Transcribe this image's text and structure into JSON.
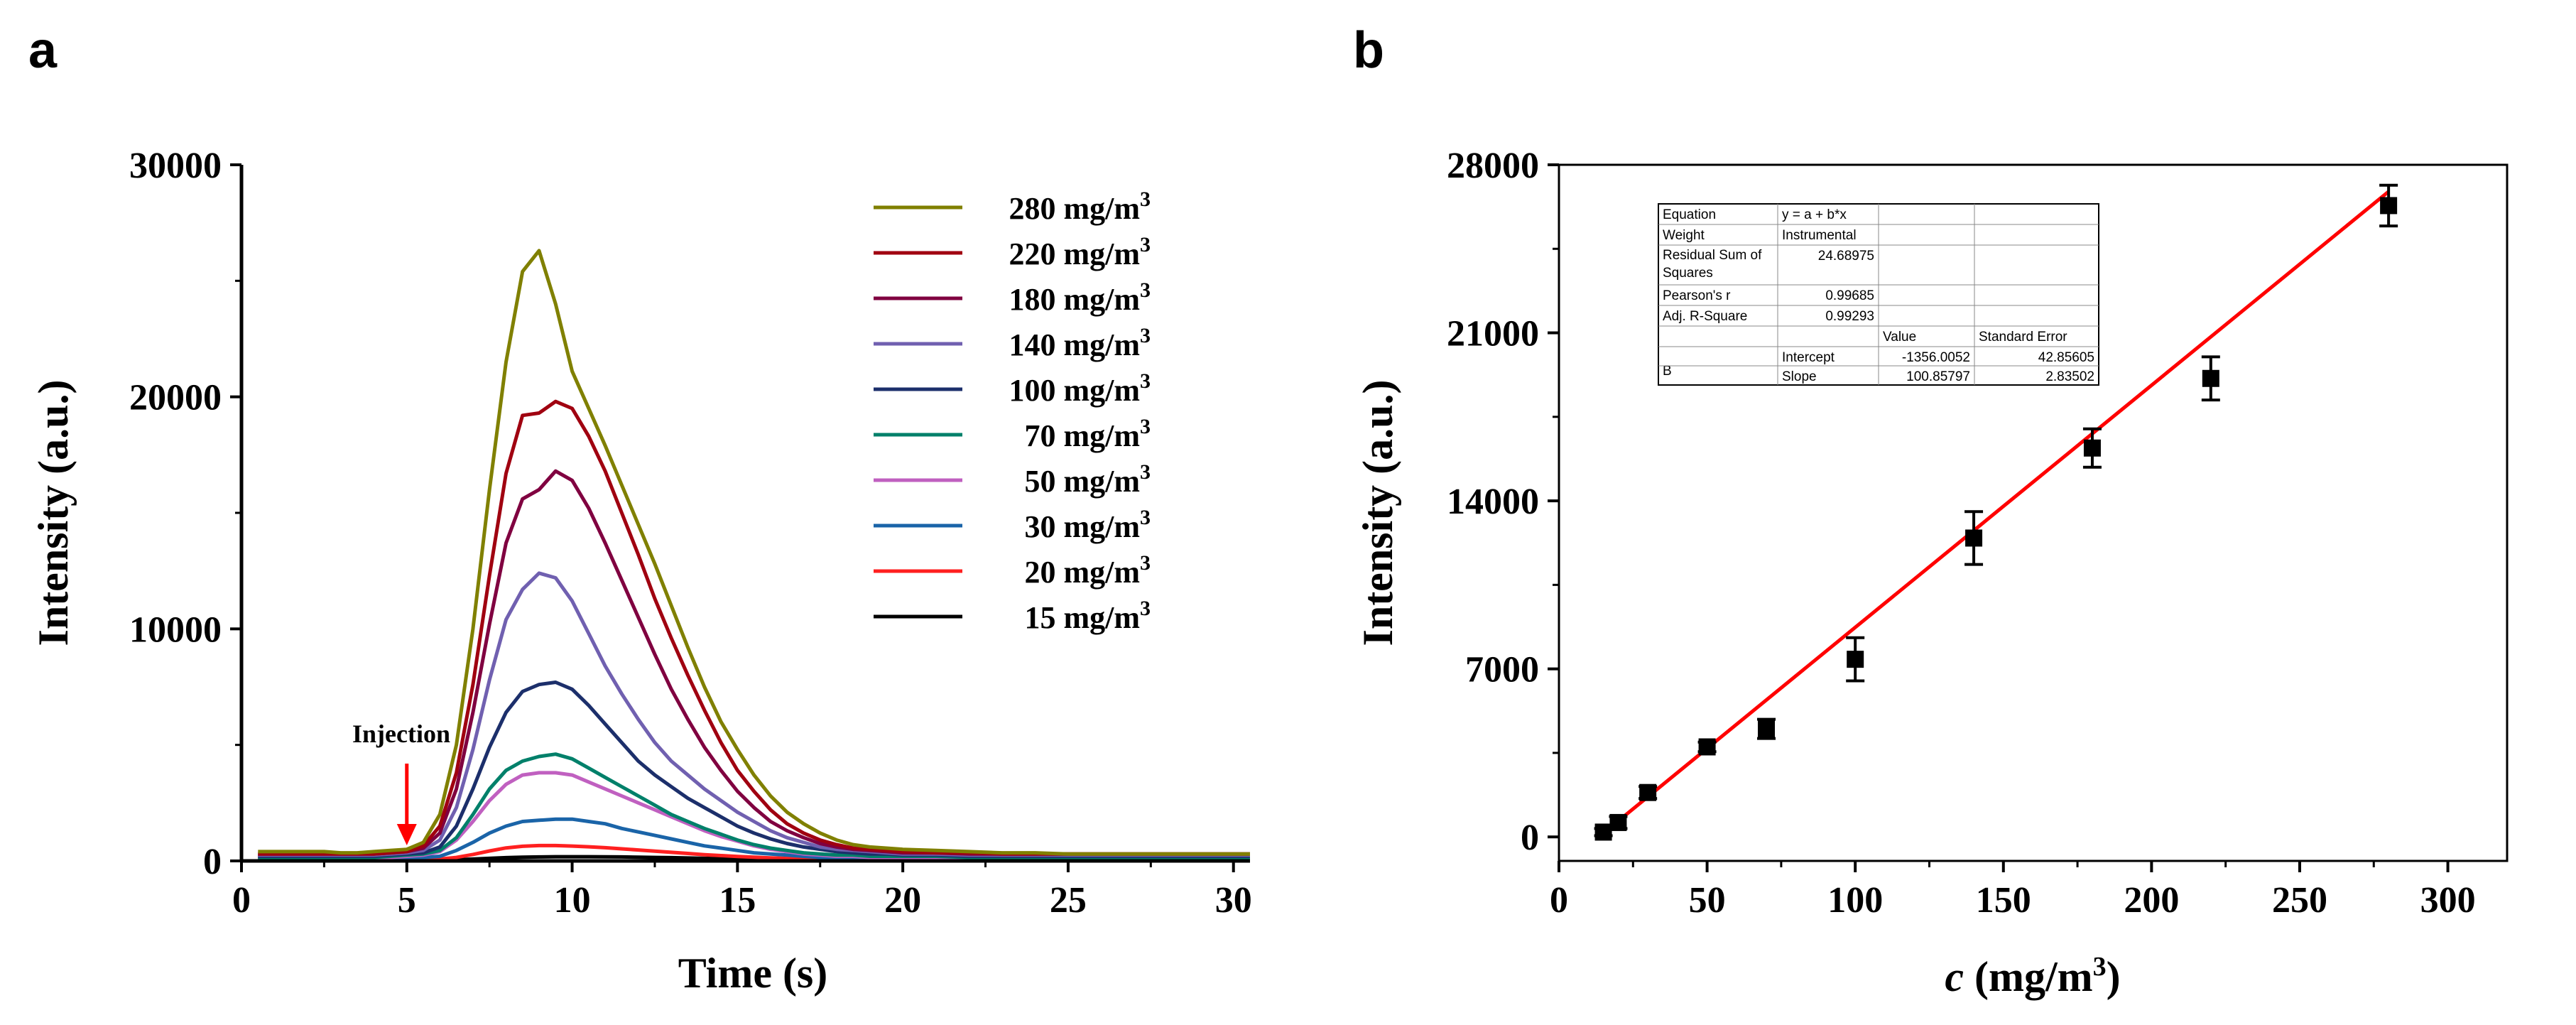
{
  "panel_labels": {
    "a": "a",
    "b": "b"
  },
  "chart_data": [
    {
      "type": "line",
      "panel": "a",
      "title": "",
      "xlabel": "Time (s)",
      "ylabel": "Intensity (a.u.)",
      "xlim": [
        0,
        30.5
      ],
      "ylim": [
        0,
        30000
      ],
      "xticks": [
        0,
        5,
        10,
        15,
        20,
        25,
        30
      ],
      "yticks": [
        0,
        10000,
        20000,
        30000
      ],
      "legend_position": "top-right",
      "annotation": {
        "text": "Injection",
        "x": 5,
        "arrow_color": "#ff0000"
      },
      "x": [
        0.5,
        1,
        1.5,
        2,
        2.5,
        3,
        3.5,
        4,
        4.5,
        5,
        5.5,
        6,
        6.5,
        7,
        7.5,
        8,
        8.5,
        9,
        9.5,
        10,
        10.5,
        11,
        11.5,
        12,
        12.5,
        13,
        13.5,
        14,
        14.5,
        15,
        15.5,
        16,
        16.5,
        17,
        17.5,
        18,
        18.5,
        19,
        19.5,
        20,
        21,
        22,
        23,
        24,
        25,
        26,
        27,
        28,
        29,
        30,
        30.5
      ],
      "series": [
        {
          "name": "280 mg/m",
          "sup": "3",
          "color": "#808000",
          "values": [
            400,
            400,
            400,
            400,
            400,
            350,
            350,
            400,
            450,
            500,
            800,
            2000,
            5000,
            10000,
            16000,
            21500,
            25400,
            26300,
            24000,
            21100,
            19500,
            17900,
            16200,
            14500,
            12800,
            11000,
            9200,
            7500,
            6000,
            4800,
            3700,
            2800,
            2100,
            1600,
            1200,
            900,
            700,
            600,
            550,
            500,
            450,
            400,
            350,
            350,
            300,
            300,
            300,
            300,
            300,
            300,
            300
          ]
        },
        {
          "name": "220 mg/m",
          "sup": "3",
          "color": "#a00010",
          "values": [
            300,
            300,
            300,
            300,
            300,
            300,
            300,
            300,
            350,
            400,
            650,
            1500,
            3800,
            7600,
            12300,
            16700,
            19200,
            19300,
            19800,
            19500,
            18300,
            16800,
            15000,
            13200,
            11300,
            9600,
            8000,
            6500,
            5100,
            3900,
            3000,
            2200,
            1600,
            1200,
            900,
            700,
            550,
            500,
            450,
            400,
            350,
            350,
            300,
            300,
            300,
            300,
            300,
            300,
            300,
            300,
            300
          ]
        },
        {
          "name": "180 mg/m",
          "sup": "3",
          "color": "#800040",
          "values": [
            300,
            300,
            300,
            300,
            300,
            300,
            300,
            300,
            350,
            400,
            550,
            1200,
            3100,
            6400,
            10200,
            13700,
            15600,
            16000,
            16800,
            16400,
            15200,
            13700,
            12100,
            10500,
            8900,
            7400,
            6100,
            4900,
            3900,
            3000,
            2300,
            1700,
            1300,
            1000,
            750,
            600,
            500,
            450,
            400,
            350,
            350,
            300,
            300,
            300,
            300,
            300,
            300,
            300,
            300,
            300,
            300
          ]
        },
        {
          "name": "140 mg/m",
          "sup": "3",
          "color": "#7060b0",
          "values": [
            250,
            250,
            250,
            250,
            250,
            250,
            250,
            250,
            300,
            350,
            450,
            900,
            2300,
            4800,
            7800,
            10400,
            11700,
            12400,
            12200,
            11200,
            9800,
            8400,
            7200,
            6100,
            5100,
            4300,
            3700,
            3100,
            2600,
            2100,
            1700,
            1300,
            1000,
            800,
            600,
            500,
            450,
            400,
            350,
            300,
            300,
            250,
            250,
            250,
            250,
            250,
            250,
            250,
            250,
            250,
            250
          ]
        },
        {
          "name": "100 mg/m",
          "sup": "3",
          "color": "#1c2f6b",
          "values": [
            200,
            200,
            200,
            200,
            200,
            200,
            200,
            200,
            250,
            300,
            350,
            600,
            1500,
            3100,
            4900,
            6400,
            7300,
            7600,
            7700,
            7400,
            6700,
            5900,
            5100,
            4300,
            3700,
            3200,
            2700,
            2300,
            1900,
            1500,
            1200,
            950,
            750,
            600,
            500,
            400,
            350,
            300,
            300,
            250,
            250,
            200,
            200,
            200,
            200,
            200,
            200,
            200,
            200,
            200,
            200
          ]
        },
        {
          "name": "70 mg/m",
          "sup": "3",
          "color": "#00806a",
          "values": [
            150,
            150,
            150,
            150,
            150,
            150,
            150,
            150,
            200,
            250,
            300,
            450,
            1000,
            2000,
            3100,
            3900,
            4300,
            4500,
            4600,
            4400,
            4000,
            3600,
            3200,
            2800,
            2400,
            2000,
            1700,
            1400,
            1150,
            900,
            700,
            550,
            450,
            350,
            300,
            250,
            250,
            200,
            200,
            200,
            200,
            150,
            150,
            150,
            150,
            150,
            150,
            150,
            150,
            150,
            150
          ]
        },
        {
          "name": "50 mg/m",
          "sup": "3",
          "color": "#c060c0",
          "values": [
            150,
            150,
            150,
            150,
            150,
            150,
            150,
            150,
            150,
            200,
            250,
            400,
            900,
            1700,
            2600,
            3300,
            3700,
            3800,
            3800,
            3700,
            3400,
            3100,
            2800,
            2500,
            2200,
            1900,
            1600,
            1300,
            1050,
            850,
            650,
            500,
            400,
            300,
            250,
            200,
            200,
            150,
            150,
            150,
            150,
            150,
            150,
            150,
            150,
            150,
            150,
            150,
            150,
            150,
            150
          ]
        },
        {
          "name": "30 mg/m",
          "sup": "3",
          "color": "#1a64a8",
          "values": [
            100,
            100,
            100,
            100,
            100,
            100,
            100,
            100,
            100,
            150,
            150,
            200,
            450,
            800,
            1200,
            1500,
            1700,
            1750,
            1800,
            1800,
            1700,
            1600,
            1400,
            1250,
            1100,
            950,
            800,
            650,
            550,
            450,
            350,
            300,
            250,
            200,
            150,
            150,
            150,
            100,
            100,
            100,
            100,
            100,
            100,
            100,
            100,
            100,
            100,
            100,
            100,
            100,
            100
          ]
        },
        {
          "name": "20 mg/m",
          "sup": "3",
          "color": "#ff2020",
          "values": [
            50,
            50,
            50,
            50,
            50,
            50,
            50,
            50,
            50,
            50,
            60,
            80,
            150,
            280,
            430,
            560,
            630,
            660,
            660,
            640,
            610,
            570,
            520,
            470,
            420,
            370,
            320,
            270,
            230,
            190,
            160,
            130,
            110,
            90,
            80,
            70,
            60,
            60,
            50,
            50,
            50,
            50,
            50,
            50,
            50,
            50,
            50,
            50,
            50,
            50,
            50
          ]
        },
        {
          "name": "15 mg/m",
          "sup": "3",
          "color": "#000000",
          "values": [
            20,
            20,
            20,
            20,
            20,
            20,
            20,
            20,
            20,
            20,
            25,
            30,
            50,
            80,
            110,
            140,
            160,
            170,
            180,
            180,
            180,
            175,
            170,
            160,
            150,
            140,
            125,
            110,
            95,
            80,
            70,
            60,
            50,
            45,
            40,
            35,
            30,
            30,
            25,
            25,
            20,
            20,
            20,
            20,
            20,
            20,
            20,
            20,
            20,
            20,
            20
          ]
        }
      ]
    },
    {
      "type": "scatter",
      "panel": "b",
      "title": "",
      "xlabel_italic": "c",
      "xlabel_rest": " (mg/m",
      "xlabel_sup": "3",
      "xlabel_end": ")",
      "ylabel": "Intensity (a.u.)",
      "xlim": [
        0,
        320
      ],
      "ylim": [
        -1000,
        28000
      ],
      "xticks": [
        0,
        50,
        100,
        150,
        200,
        250,
        300
      ],
      "yticks": [
        0,
        7000,
        14000,
        21000,
        28000
      ],
      "x": [
        15,
        20,
        30,
        50,
        70,
        100,
        140,
        180,
        220,
        280
      ],
      "y": [
        200,
        600,
        1850,
        3750,
        4500,
        7400,
        12450,
        16200,
        19100,
        26300
      ],
      "yerr": [
        150,
        250,
        250,
        200,
        400,
        900,
        1100,
        800,
        900,
        850
      ],
      "fit": {
        "intercept": -1356.0052,
        "slope": 100.85797,
        "x_range": [
          15,
          280
        ],
        "color": "#ff0000"
      },
      "fit_table": {
        "rows": [
          [
            "Equation",
            "y = a + b*x",
            "",
            ""
          ],
          [
            "Weight",
            "Instrumental",
            "",
            ""
          ],
          [
            "Residual Sum of Squares",
            "24.68975",
            "",
            ""
          ],
          [
            "Pearson's r",
            "0.99685",
            "",
            ""
          ],
          [
            "Adj. R-Square",
            "0.99293",
            "",
            ""
          ],
          [
            "",
            "",
            "Value",
            "Standard Error"
          ],
          [
            "B",
            "Intercept",
            "-1356.0052",
            "42.85605"
          ],
          [
            "",
            "Slope",
            "100.85797",
            "2.83502"
          ]
        ]
      }
    }
  ]
}
